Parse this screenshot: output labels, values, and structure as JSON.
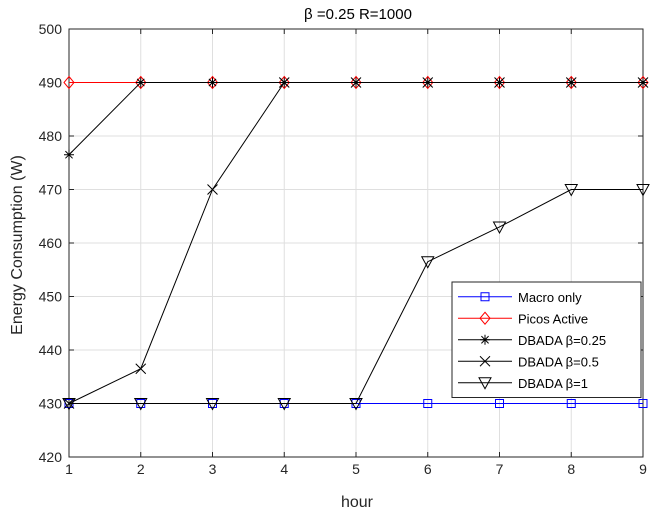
{
  "chart_data": {
    "type": "line",
    "title": "β =0.25 R=1000",
    "xlabel": "hour",
    "ylabel": "Energy Consumption (W)",
    "xlim": [
      1,
      9
    ],
    "ylim": [
      420,
      500
    ],
    "xticks": [
      "1",
      "2",
      "3",
      "4",
      "5",
      "6",
      "7",
      "8",
      "9"
    ],
    "yticks": [
      "420",
      "430",
      "440",
      "450",
      "460",
      "470",
      "480",
      "490",
      "500"
    ],
    "grid": true,
    "legend_position": "lower-right",
    "x": [
      1,
      2,
      3,
      4,
      5,
      6,
      7,
      8,
      9
    ],
    "series": [
      {
        "name": "Macro only",
        "marker": "square",
        "color": "#0000ff",
        "values": [
          430,
          430,
          430,
          430,
          430,
          430,
          430,
          430,
          430
        ]
      },
      {
        "name": "Picos Active",
        "marker": "diamond",
        "color": "#ff0000",
        "values": [
          490,
          490,
          490,
          490,
          490,
          490,
          490,
          490,
          490
        ]
      },
      {
        "name": "DBADA β=0.25",
        "marker": "asterisk",
        "color": "#000000",
        "values": [
          476.5,
          490,
          490,
          490,
          490,
          490,
          490,
          490,
          490
        ]
      },
      {
        "name": "DBADA β=0.5",
        "marker": "x",
        "color": "#000000",
        "values": [
          430,
          436.5,
          470,
          490,
          490,
          490,
          490,
          490,
          490
        ]
      },
      {
        "name": "DBADA β=1",
        "marker": "triangle-down",
        "color": "#000000",
        "values": [
          430,
          430,
          430,
          430,
          430,
          456.5,
          463,
          470,
          470
        ]
      }
    ]
  }
}
